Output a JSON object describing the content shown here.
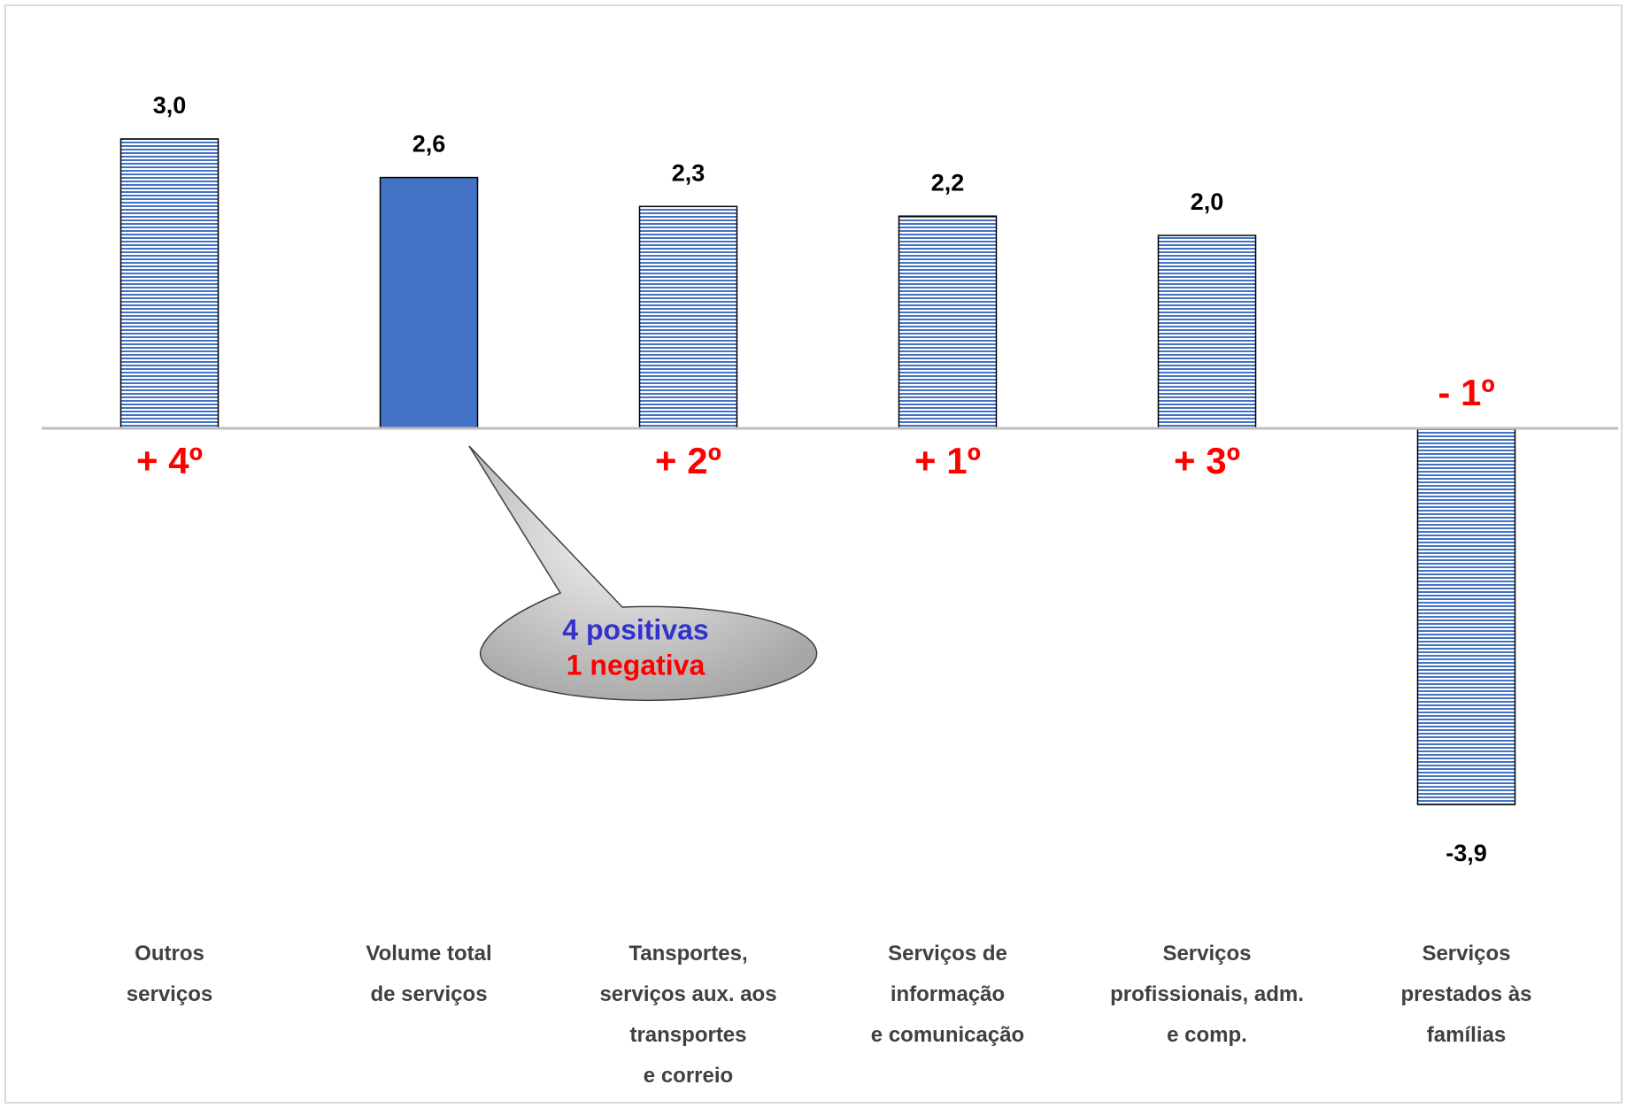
{
  "chart_data": {
    "type": "bar",
    "categories": [
      [
        "Outros",
        "serviços"
      ],
      [
        "Volume total",
        "de serviços"
      ],
      [
        "Tansportes,",
        "serviços aux. aos",
        "transportes",
        "e correio"
      ],
      [
        "Serviços de",
        "informação",
        "e comunicação"
      ],
      [
        "Serviços",
        "profissionais, adm.",
        "e comp."
      ],
      [
        "Serviços",
        "prestados às",
        "famílias"
      ]
    ],
    "values": [
      3.0,
      2.6,
      2.3,
      2.2,
      2.0,
      -3.9
    ],
    "value_labels": [
      "3,0",
      "2,6",
      "2,3",
      "2,2",
      "2,0",
      "-3,9"
    ],
    "ranks": [
      "+ 4º",
      null,
      "+ 2º",
      "+ 1º",
      "+ 3º",
      "- 1º"
    ],
    "color": "#4472c4",
    "highlight_index": 1,
    "callout": {
      "lines": [
        {
          "text": "4 positivas",
          "color": "#3333cc"
        },
        {
          "text": "1 negativa",
          "color": "#ff0000"
        }
      ]
    }
  }
}
